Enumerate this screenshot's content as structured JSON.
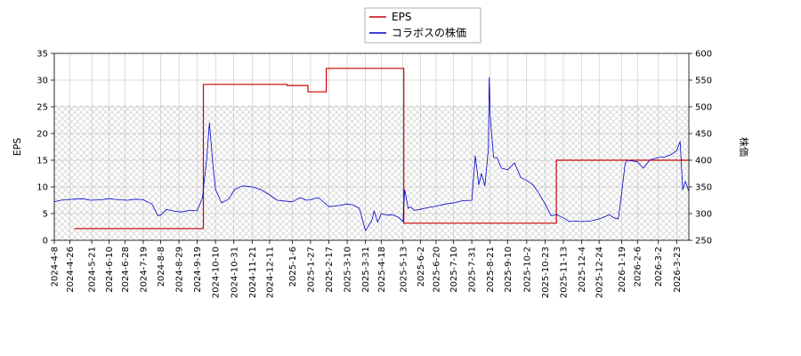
{
  "chart_data": {
    "type": "line",
    "title": "",
    "legend": {
      "placement": "top-center",
      "entries": [
        {
          "label": "EPS",
          "color": "#cc0000"
        },
        {
          "label": "コラボスの株価",
          "color": "#0000cc"
        }
      ]
    },
    "x_axis": {
      "type": "date",
      "range": [
        "2024-04-08",
        "2026-04-06"
      ],
      "tick_labels": [
        "2024-4-8",
        "2024-4-26",
        "2024-5-21",
        "2024-6-10",
        "2024-6-28",
        "2024-7-19",
        "2024-8-8",
        "2024-8-29",
        "2024-9-19",
        "2024-10-10",
        "2024-10-31",
        "2024-11-21",
        "2024-12-11",
        "2025-1-6",
        "2025-1-27",
        "2025-2-17",
        "2025-3-10",
        "2025-3-31",
        "2025-4-18",
        "2025-5-13",
        "2025-6-2",
        "2025-6-20",
        "2025-7-10",
        "2025-7-31",
        "2025-8-21",
        "2025-9-10",
        "2025-10-2",
        "2025-10-23",
        "2025-11-13",
        "2025-12-4",
        "2025-12-24",
        "2026-1-19",
        "2026-2-6",
        "2026-3-2",
        "2026-3-23"
      ]
    },
    "y_left": {
      "label": "EPS",
      "range": [
        0,
        35
      ],
      "ticks": [
        0,
        5,
        10,
        15,
        20,
        25,
        30,
        35
      ]
    },
    "y_right": {
      "label": "株価",
      "range": [
        250,
        600
      ],
      "ticks": [
        250,
        300,
        350,
        400,
        450,
        500,
        550,
        600
      ]
    },
    "grid": true,
    "hatched_band": {
      "y_left_range": [
        0,
        25.3
      ]
    },
    "series": [
      {
        "name": "EPS",
        "axis": "left",
        "color": "#cc0000",
        "step": true,
        "x": [
          "2024-05-01",
          "2024-09-26",
          "2024-12-31",
          "2025-01-21",
          "2025-01-24",
          "2025-02-12",
          "2025-02-14",
          "2025-05-12",
          "2025-05-14",
          "2025-11-01",
          "2025-11-05",
          "2026-04-06"
        ],
        "y": [
          2.2,
          29.2,
          29.0,
          29.0,
          27.8,
          27.8,
          32.2,
          32.2,
          3.2,
          3.2,
          15.0,
          15.0
        ]
      },
      {
        "name": "コラボスの株価",
        "axis": "right",
        "color": "#0000cc",
        "x": [
          "2024-04-08",
          "2024-04-15",
          "2024-04-22",
          "2024-05-01",
          "2024-05-10",
          "2024-05-20",
          "2024-06-01",
          "2024-06-10",
          "2024-06-20",
          "2024-07-01",
          "2024-07-10",
          "2024-07-19",
          "2024-07-29",
          "2024-08-05",
          "2024-08-08",
          "2024-08-15",
          "2024-08-22",
          "2024-09-01",
          "2024-09-10",
          "2024-09-19",
          "2024-09-25",
          "2024-09-30",
          "2024-10-03",
          "2024-10-07",
          "2024-10-10",
          "2024-10-17",
          "2024-10-25",
          "2024-11-01",
          "2024-11-10",
          "2024-11-21",
          "2024-12-01",
          "2024-12-11",
          "2024-12-20",
          "2025-01-06",
          "2025-01-15",
          "2025-01-22",
          "2025-01-27",
          "2025-02-05",
          "2025-02-17",
          "2025-02-28",
          "2025-03-10",
          "2025-03-17",
          "2025-03-24",
          "2025-03-31",
          "2025-04-07",
          "2025-04-10",
          "2025-04-14",
          "2025-04-18",
          "2025-04-25",
          "2025-05-01",
          "2025-05-08",
          "2025-05-13",
          "2025-05-15",
          "2025-05-19",
          "2025-05-22",
          "2025-05-26",
          "2025-06-02",
          "2025-06-10",
          "2025-06-20",
          "2025-07-01",
          "2025-07-10",
          "2025-07-20",
          "2025-07-31",
          "2025-08-04",
          "2025-08-08",
          "2025-08-11",
          "2025-08-15",
          "2025-08-19",
          "2025-08-20",
          "2025-08-21",
          "2025-08-25",
          "2025-08-29",
          "2025-09-03",
          "2025-09-10",
          "2025-09-18",
          "2025-09-25",
          "2025-10-02",
          "2025-10-09",
          "2025-10-16",
          "2025-10-23",
          "2025-10-30",
          "2025-11-06",
          "2025-11-13",
          "2025-11-20",
          "2025-11-27",
          "2025-12-04",
          "2025-12-14",
          "2025-12-24",
          "2026-01-05",
          "2026-01-10",
          "2026-01-15",
          "2026-01-19",
          "2026-01-23",
          "2026-01-26",
          "2026-02-06",
          "2026-02-13",
          "2026-02-20",
          "2026-03-02",
          "2026-03-09",
          "2026-03-16",
          "2026-03-23",
          "2026-03-27",
          "2026-03-30",
          "2026-04-02",
          "2026-04-06"
        ],
        "y": [
          322,
          325,
          326,
          327,
          328,
          325,
          326,
          328,
          326,
          325,
          327,
          326,
          318,
          296,
          297,
          308,
          305,
          303,
          306,
          305,
          330,
          405,
          470,
          390,
          345,
          320,
          327,
          345,
          352,
          350,
          345,
          335,
          325,
          322,
          330,
          325,
          326,
          330,
          313,
          315,
          318,
          316,
          310,
          268,
          286,
          305,
          284,
          300,
          297,
          298,
          293,
          285,
          345,
          310,
          312,
          306,
          308,
          311,
          314,
          318,
          320,
          324,
          325,
          408,
          354,
          375,
          352,
          420,
          555,
          485,
          405,
          405,
          385,
          382,
          395,
          368,
          362,
          354,
          338,
          318,
          296,
          298,
          292,
          285,
          286,
          285,
          286,
          290,
          298,
          292,
          290,
          340,
          395,
          400,
          397,
          385,
          400,
          405,
          406,
          410,
          418,
          435,
          345,
          360,
          342
        ]
      }
    ]
  }
}
